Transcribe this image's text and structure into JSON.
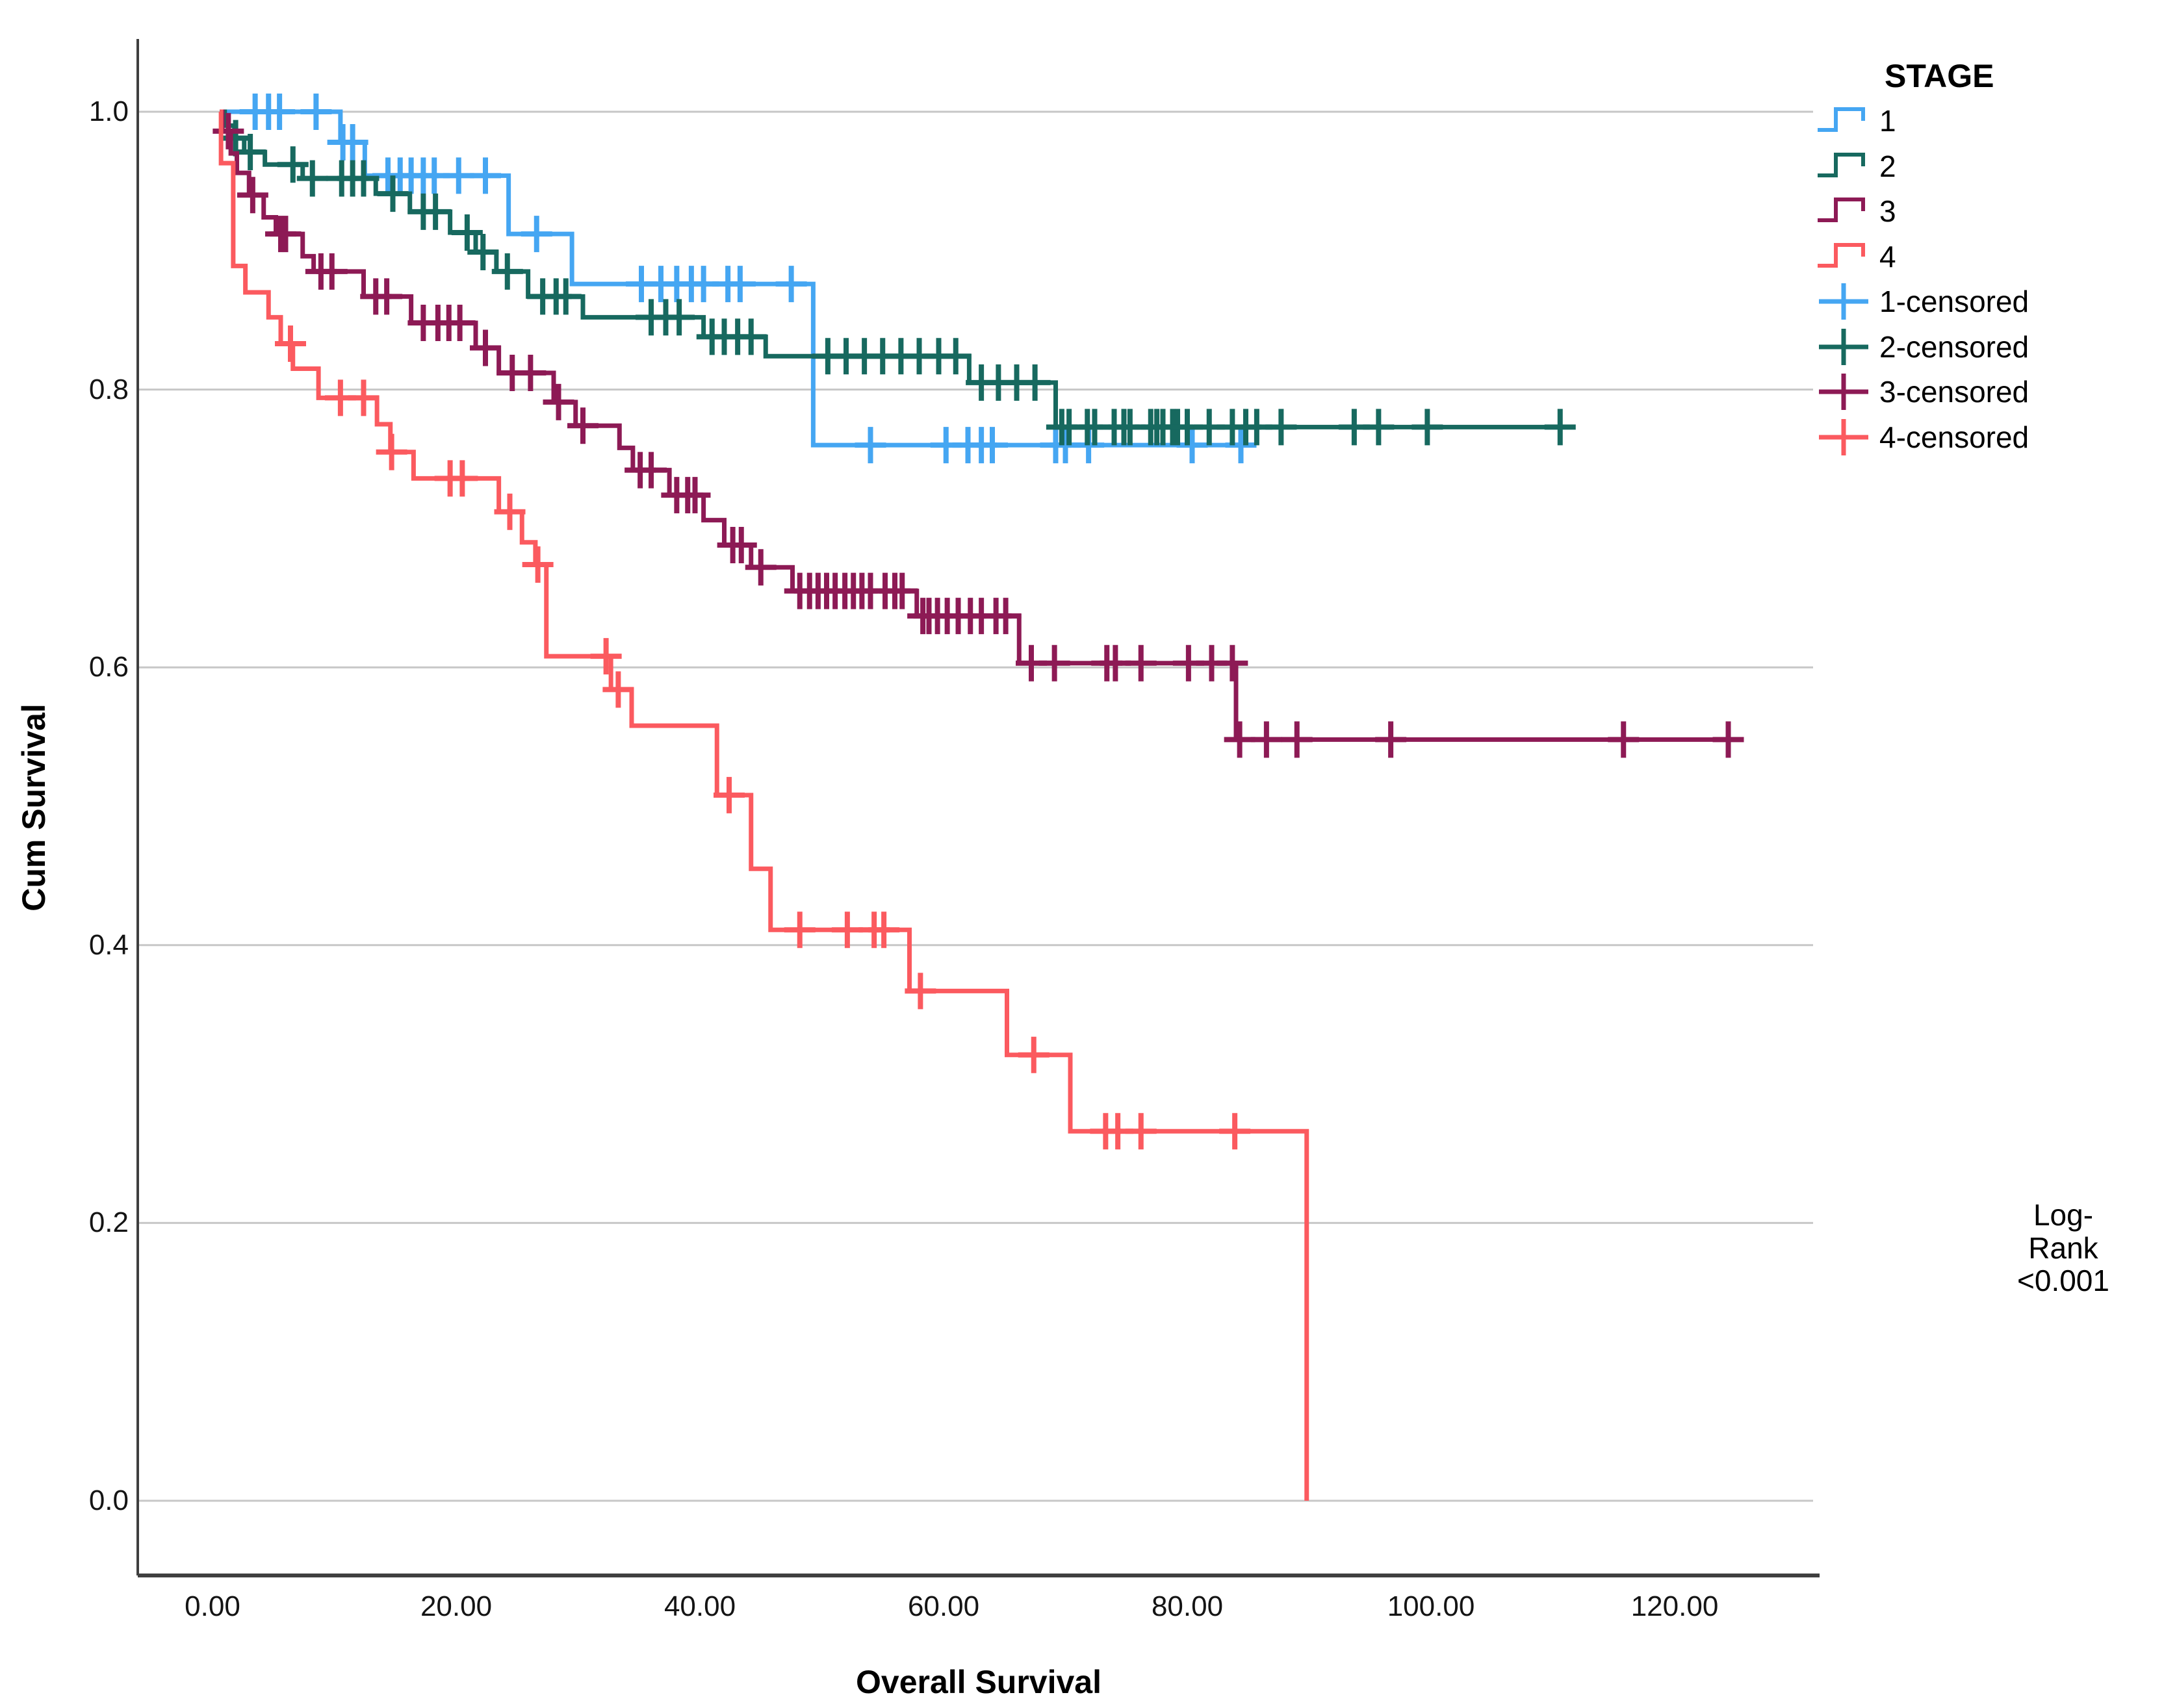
{
  "chart_data": {
    "type": "line",
    "subtype": "kaplan-meier-step",
    "xlabel": "Overall Survival",
    "ylabel": "Cum Survival",
    "x_ticks": [
      0,
      20,
      40,
      60,
      80,
      100,
      120
    ],
    "x_tick_labels": [
      "0.00",
      "20.00",
      "40.00",
      "60.00",
      "80.00",
      "100.00",
      "120.00"
    ],
    "y_ticks": [
      1.0,
      0.8,
      0.6,
      0.4,
      0.2,
      0.0
    ],
    "y_tick_labels": [
      "1.0",
      "0.8",
      "0.6",
      "0.4",
      "0.2",
      "0.0"
    ],
    "xlim": [
      -6,
      131
    ],
    "ylim": [
      0.0,
      1.0
    ],
    "grid": "horizontal",
    "gridline_color": "#c7c7c7",
    "axis_color": "#3f3f3f",
    "legend_title": "STAGE",
    "legend_position": "top-right",
    "annotation": {
      "line1": "Log-Rank",
      "line2": "<0.001"
    },
    "series": [
      {
        "name": "1",
        "censored_name": "1-censored",
        "color": "#45A6F2",
        "steps": [
          [
            0.6,
            1.0
          ],
          [
            10.5,
            0.978
          ],
          [
            12.5,
            0.954
          ],
          [
            24.3,
            0.912
          ],
          [
            29.5,
            0.876
          ],
          [
            49.3,
            0.76
          ],
          [
            84.6,
            0.76
          ]
        ],
        "censored": [
          [
            3.5,
            1.0
          ],
          [
            4.6,
            1.0
          ],
          [
            5.5,
            1.0
          ],
          [
            8.5,
            1.0
          ],
          [
            10.7,
            0.978
          ],
          [
            11.5,
            0.978
          ],
          [
            14.4,
            0.954
          ],
          [
            15.4,
            0.954
          ],
          [
            16.3,
            0.954
          ],
          [
            17.3,
            0.954
          ],
          [
            18.2,
            0.954
          ],
          [
            20.2,
            0.954
          ],
          [
            22.4,
            0.954
          ],
          [
            26.6,
            0.912
          ],
          [
            35.2,
            0.876
          ],
          [
            36.8,
            0.876
          ],
          [
            38.1,
            0.876
          ],
          [
            39.3,
            0.876
          ],
          [
            40.3,
            0.876
          ],
          [
            42.3,
            0.876
          ],
          [
            43.3,
            0.876
          ],
          [
            47.5,
            0.876
          ],
          [
            54.0,
            0.76
          ],
          [
            60.2,
            0.76
          ],
          [
            62.0,
            0.76
          ],
          [
            63.1,
            0.76
          ],
          [
            64.0,
            0.76
          ],
          [
            69.2,
            0.76
          ],
          [
            70.0,
            0.76
          ],
          [
            71.9,
            0.76
          ],
          [
            80.4,
            0.76
          ],
          [
            84.4,
            0.76
          ]
        ]
      },
      {
        "name": "2",
        "censored_name": "2-censored",
        "color": "#17695F",
        "steps": [
          [
            0.6,
            1.0
          ],
          [
            1.0,
            0.99
          ],
          [
            1.8,
            0.981
          ],
          [
            2.6,
            0.971
          ],
          [
            4.3,
            0.962
          ],
          [
            7.4,
            0.952
          ],
          [
            13.4,
            0.941
          ],
          [
            16.2,
            0.928
          ],
          [
            19.5,
            0.913
          ],
          [
            21.6,
            0.899
          ],
          [
            23.3,
            0.885
          ],
          [
            25.9,
            0.867
          ],
          [
            30.4,
            0.852
          ],
          [
            40.3,
            0.838
          ],
          [
            45.4,
            0.824
          ],
          [
            62.1,
            0.805
          ],
          [
            69.2,
            0.773
          ],
          [
            110.6,
            0.773
          ]
        ],
        "censored": [
          [
            1.9,
            0.981
          ],
          [
            3.1,
            0.971
          ],
          [
            6.6,
            0.962
          ],
          [
            8.2,
            0.952
          ],
          [
            10.6,
            0.952
          ],
          [
            11.5,
            0.952
          ],
          [
            12.4,
            0.952
          ],
          [
            14.8,
            0.941
          ],
          [
            17.3,
            0.928
          ],
          [
            18.3,
            0.928
          ],
          [
            20.9,
            0.913
          ],
          [
            22.2,
            0.899
          ],
          [
            24.2,
            0.885
          ],
          [
            27.1,
            0.867
          ],
          [
            28.2,
            0.867
          ],
          [
            29.0,
            0.867
          ],
          [
            36.0,
            0.852
          ],
          [
            37.2,
            0.852
          ],
          [
            38.3,
            0.852
          ],
          [
            41.0,
            0.838
          ],
          [
            42.0,
            0.838
          ],
          [
            43.1,
            0.838
          ],
          [
            44.2,
            0.838
          ],
          [
            50.5,
            0.824
          ],
          [
            52.0,
            0.824
          ],
          [
            53.5,
            0.824
          ],
          [
            55.0,
            0.824
          ],
          [
            56.5,
            0.824
          ],
          [
            58.0,
            0.824
          ],
          [
            59.6,
            0.824
          ],
          [
            61.0,
            0.824
          ],
          [
            63.1,
            0.805
          ],
          [
            64.5,
            0.805
          ],
          [
            66.0,
            0.805
          ],
          [
            67.5,
            0.805
          ],
          [
            69.7,
            0.773
          ],
          [
            70.3,
            0.773
          ],
          [
            71.8,
            0.773
          ],
          [
            72.4,
            0.773
          ],
          [
            74.0,
            0.773
          ],
          [
            74.8,
            0.773
          ],
          [
            75.3,
            0.773
          ],
          [
            77.0,
            0.773
          ],
          [
            77.5,
            0.773
          ],
          [
            78.0,
            0.773
          ],
          [
            78.8,
            0.773
          ],
          [
            79.2,
            0.773
          ],
          [
            80.0,
            0.773
          ],
          [
            81.8,
            0.773
          ],
          [
            83.7,
            0.773
          ],
          [
            84.8,
            0.773
          ],
          [
            85.7,
            0.773
          ],
          [
            87.7,
            0.773
          ],
          [
            93.7,
            0.773
          ],
          [
            95.7,
            0.773
          ],
          [
            99.7,
            0.773
          ],
          [
            110.6,
            0.773
          ]
        ]
      },
      {
        "name": "3",
        "censored_name": "3-censored",
        "color": "#8D1A55",
        "steps": [
          [
            0.6,
            1.0
          ],
          [
            0.8,
            0.986
          ],
          [
            1.5,
            0.97
          ],
          [
            2.0,
            0.956
          ],
          [
            3.0,
            0.94
          ],
          [
            4.2,
            0.924
          ],
          [
            5.2,
            0.912
          ],
          [
            7.4,
            0.896
          ],
          [
            8.3,
            0.885
          ],
          [
            12.4,
            0.867
          ],
          [
            16.3,
            0.848
          ],
          [
            21.6,
            0.83
          ],
          [
            23.5,
            0.812
          ],
          [
            28.0,
            0.791
          ],
          [
            29.8,
            0.774
          ],
          [
            33.4,
            0.758
          ],
          [
            34.5,
            0.742
          ],
          [
            37.5,
            0.724
          ],
          [
            40.3,
            0.706
          ],
          [
            42.0,
            0.688
          ],
          [
            44.2,
            0.672
          ],
          [
            47.6,
            0.655
          ],
          [
            57.8,
            0.637
          ],
          [
            66.2,
            0.603
          ],
          [
            84.0,
            0.548
          ],
          [
            125.0,
            0.548
          ]
        ],
        "censored": [
          [
            1.3,
            0.986
          ],
          [
            3.3,
            0.94
          ],
          [
            5.6,
            0.912
          ],
          [
            6.0,
            0.912
          ],
          [
            8.9,
            0.885
          ],
          [
            9.8,
            0.885
          ],
          [
            13.4,
            0.867
          ],
          [
            14.3,
            0.867
          ],
          [
            17.3,
            0.848
          ],
          [
            18.5,
            0.848
          ],
          [
            19.4,
            0.848
          ],
          [
            20.3,
            0.848
          ],
          [
            22.4,
            0.83
          ],
          [
            24.6,
            0.812
          ],
          [
            26.1,
            0.812
          ],
          [
            28.4,
            0.791
          ],
          [
            30.4,
            0.774
          ],
          [
            35.1,
            0.742
          ],
          [
            36.0,
            0.742
          ],
          [
            38.1,
            0.724
          ],
          [
            39.0,
            0.724
          ],
          [
            39.6,
            0.724
          ],
          [
            42.7,
            0.688
          ],
          [
            43.4,
            0.688
          ],
          [
            45.0,
            0.672
          ],
          [
            48.2,
            0.655
          ],
          [
            49.0,
            0.655
          ],
          [
            49.7,
            0.655
          ],
          [
            50.4,
            0.655
          ],
          [
            51.1,
            0.655
          ],
          [
            51.9,
            0.655
          ],
          [
            52.6,
            0.655
          ],
          [
            53.3,
            0.655
          ],
          [
            54.0,
            0.655
          ],
          [
            55.2,
            0.655
          ],
          [
            56.0,
            0.655
          ],
          [
            56.6,
            0.655
          ],
          [
            58.3,
            0.637
          ],
          [
            58.8,
            0.637
          ],
          [
            59.5,
            0.637
          ],
          [
            60.3,
            0.637
          ],
          [
            61.2,
            0.637
          ],
          [
            62.2,
            0.637
          ],
          [
            63.1,
            0.637
          ],
          [
            64.3,
            0.637
          ],
          [
            65.1,
            0.637
          ],
          [
            67.2,
            0.603
          ],
          [
            69.1,
            0.603
          ],
          [
            73.4,
            0.603
          ],
          [
            74.1,
            0.603
          ],
          [
            76.2,
            0.603
          ],
          [
            80.1,
            0.603
          ],
          [
            82.0,
            0.603
          ],
          [
            83.7,
            0.603
          ],
          [
            84.3,
            0.548
          ],
          [
            86.5,
            0.548
          ],
          [
            89.0,
            0.548
          ],
          [
            96.7,
            0.548
          ],
          [
            115.8,
            0.548
          ],
          [
            124.4,
            0.548
          ]
        ]
      },
      {
        "name": "4",
        "censored_name": "4-censored",
        "color": "#FB5A5F",
        "steps": [
          [
            0.6,
            1.0
          ],
          [
            0.7,
            0.963
          ],
          [
            1.7,
            0.889
          ],
          [
            2.7,
            0.87
          ],
          [
            4.6,
            0.852
          ],
          [
            5.6,
            0.833
          ],
          [
            6.6,
            0.815
          ],
          [
            8.7,
            0.794
          ],
          [
            13.5,
            0.775
          ],
          [
            14.6,
            0.755
          ],
          [
            16.5,
            0.736
          ],
          [
            23.5,
            0.712
          ],
          [
            25.4,
            0.69
          ],
          [
            26.5,
            0.674
          ],
          [
            27.4,
            0.608
          ],
          [
            32.7,
            0.584
          ],
          [
            34.4,
            0.558
          ],
          [
            41.4,
            0.508
          ],
          [
            44.2,
            0.455
          ],
          [
            45.8,
            0.411
          ],
          [
            57.2,
            0.367
          ],
          [
            65.2,
            0.321
          ],
          [
            70.4,
            0.266
          ],
          [
            89.8,
            0.0
          ]
        ],
        "censored": [
          [
            6.4,
            0.833
          ],
          [
            10.5,
            0.794
          ],
          [
            12.4,
            0.794
          ],
          [
            14.7,
            0.755
          ],
          [
            19.5,
            0.736
          ],
          [
            20.5,
            0.736
          ],
          [
            24.4,
            0.712
          ],
          [
            26.7,
            0.674
          ],
          [
            32.3,
            0.608
          ],
          [
            33.3,
            0.584
          ],
          [
            42.4,
            0.508
          ],
          [
            48.2,
            0.411
          ],
          [
            52.1,
            0.411
          ],
          [
            54.3,
            0.411
          ],
          [
            55.1,
            0.411
          ],
          [
            58.1,
            0.367
          ],
          [
            67.4,
            0.321
          ],
          [
            73.3,
            0.266
          ],
          [
            74.3,
            0.266
          ],
          [
            76.2,
            0.266
          ],
          [
            83.9,
            0.266
          ]
        ]
      }
    ]
  }
}
